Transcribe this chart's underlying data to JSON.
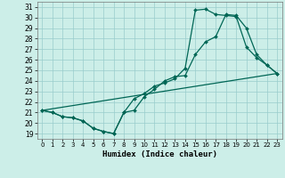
{
  "xlabel": "Humidex (Indice chaleur)",
  "bg_color": "#cceee8",
  "grid_color": "#99cccc",
  "line_color": "#006655",
  "xlim": [
    -0.5,
    23.5
  ],
  "ylim": [
    18.5,
    31.5
  ],
  "xticks": [
    0,
    1,
    2,
    3,
    4,
    5,
    6,
    7,
    8,
    9,
    10,
    11,
    12,
    13,
    14,
    15,
    16,
    17,
    18,
    19,
    20,
    21,
    22,
    23
  ],
  "yticks": [
    19,
    20,
    21,
    22,
    23,
    24,
    25,
    26,
    27,
    28,
    29,
    30,
    31
  ],
  "curve1_x": [
    0,
    1,
    2,
    3,
    4,
    5,
    6,
    7,
    8,
    9,
    10,
    11,
    12,
    13,
    14,
    15,
    16,
    17,
    18,
    19,
    20,
    21,
    22,
    23
  ],
  "curve1_y": [
    21.2,
    21.0,
    20.6,
    20.5,
    20.2,
    19.5,
    19.2,
    19.0,
    21.0,
    21.2,
    22.5,
    23.2,
    24.0,
    24.4,
    24.5,
    26.5,
    27.7,
    28.2,
    30.3,
    30.2,
    29.0,
    26.5,
    25.5,
    24.7
  ],
  "curve2_x": [
    0,
    1,
    2,
    3,
    4,
    5,
    6,
    7,
    8,
    9,
    10,
    11,
    12,
    13,
    14,
    15,
    16,
    17,
    18,
    19,
    20,
    21,
    22,
    23
  ],
  "curve2_y": [
    21.2,
    21.0,
    20.6,
    20.5,
    20.2,
    19.5,
    19.2,
    19.0,
    21.0,
    22.3,
    22.8,
    23.5,
    23.8,
    24.2,
    25.2,
    30.7,
    30.8,
    30.3,
    30.2,
    30.1,
    27.2,
    26.2,
    25.5,
    24.7
  ],
  "curve3_x": [
    0,
    23
  ],
  "curve3_y": [
    21.2,
    24.7
  ]
}
